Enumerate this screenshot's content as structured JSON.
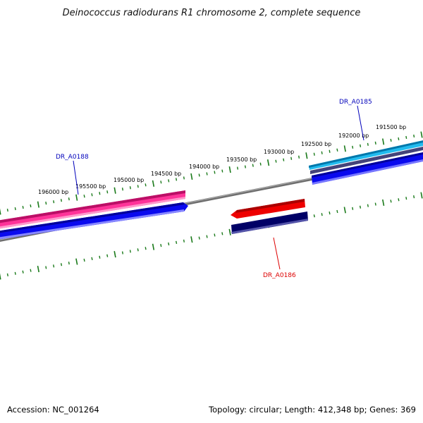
{
  "title": "Deinococcus radiodurans R1 chromosome 2, complete sequence",
  "footer": {
    "accession": "Accession: NC_001264",
    "summary": "Topology: circular; Length: 412,348 bp; Genes: 369"
  },
  "ruler": {
    "tick_labels": [
      "196000 bp",
      "195500 bp",
      "195000 bp",
      "194500 bp",
      "194000 bp",
      "193500 bp",
      "193000 bp",
      "192500 bp",
      "192000 bp",
      "191500 bp"
    ],
    "tick_color": "#1a7a1a"
  },
  "genes": [
    {
      "name": "DR_A0188",
      "color": "#0000bb"
    },
    {
      "name": "DR_A0185",
      "color": "#0000bb"
    },
    {
      "name": "DR_A0186",
      "color": "#dd0000"
    }
  ],
  "colors": {
    "backbone": "#7a7a7a",
    "pink": "#ff3399",
    "blue": "#0a0aee",
    "red": "#ee0000",
    "navy": "#000066",
    "cyan": "#22bbee",
    "slate": "#44447a",
    "ruler": "#1a7a1a"
  }
}
